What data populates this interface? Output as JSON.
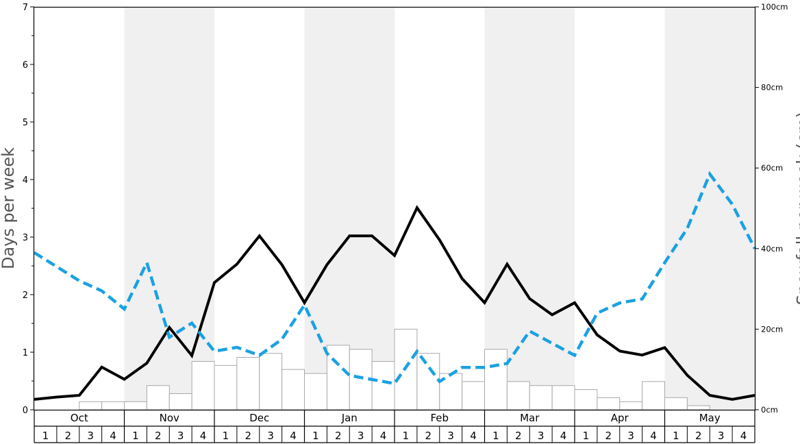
{
  "chart_data": {
    "type": "bar",
    "ylabel": "Days per week",
    "y2label": "Snowfall per week (cm)",
    "ylim": [
      0,
      7
    ],
    "y_ticks": [
      "0",
      "1",
      "2",
      "3",
      "4",
      "5",
      "6",
      "7"
    ],
    "y2lim": [
      0,
      100
    ],
    "y2_ticks": [
      "0cm",
      "20cm",
      "40cm",
      "60cm",
      "80cm",
      "100cm"
    ],
    "months": [
      "Oct",
      "Nov",
      "Dec",
      "Jan",
      "Feb",
      "Mar",
      "Apr",
      "May"
    ],
    "weeks": [
      "1",
      "2",
      "3",
      "4"
    ],
    "shaded_months": [
      "Nov",
      "Jan",
      "Mar",
      "May"
    ],
    "series": [
      {
        "type": "bar",
        "axis": "left",
        "color": "#ffffff",
        "values": [
          0.0,
          0.0,
          0.14,
          0.14,
          0.14,
          0.42,
          0.28,
          0.84,
          0.77,
          0.91,
          0.98,
          0.7,
          0.63,
          1.12,
          1.05,
          0.84,
          1.4,
          0.98,
          0.63,
          0.49,
          1.05,
          0.49,
          0.42,
          0.42,
          0.35,
          0.21,
          0.14,
          0.49,
          0.21,
          0.07,
          0.0,
          0.0
        ]
      },
      {
        "type": "line",
        "axis": "left",
        "color": "#000000",
        "values": [
          0.18,
          0.22,
          0.25,
          0.74,
          0.53,
          0.81,
          1.43,
          0.94,
          2.21,
          2.53,
          3.02,
          2.52,
          1.86,
          2.52,
          3.02,
          3.02,
          2.68,
          3.51,
          2.95,
          2.28,
          1.86,
          2.53,
          1.93,
          1.65,
          1.86,
          1.3,
          1.02,
          0.95,
          1.08,
          0.6,
          0.25,
          0.18,
          0.25
        ]
      },
      {
        "type": "line",
        "axis": "right",
        "color": "#1ba1e2",
        "dashed": true,
        "values": [
          39.0,
          35.5,
          32.0,
          29.5,
          25.0,
          36.5,
          18.0,
          21.5,
          14.5,
          15.5,
          13.5,
          17.5,
          26.0,
          14.0,
          8.5,
          7.5,
          6.5,
          14.5,
          7.0,
          10.5,
          10.5,
          11.5,
          19.5,
          16.5,
          13.5,
          24.0,
          26.5,
          27.5,
          36.5,
          45.0,
          58.5,
          51.0,
          40.0
        ]
      }
    ]
  }
}
